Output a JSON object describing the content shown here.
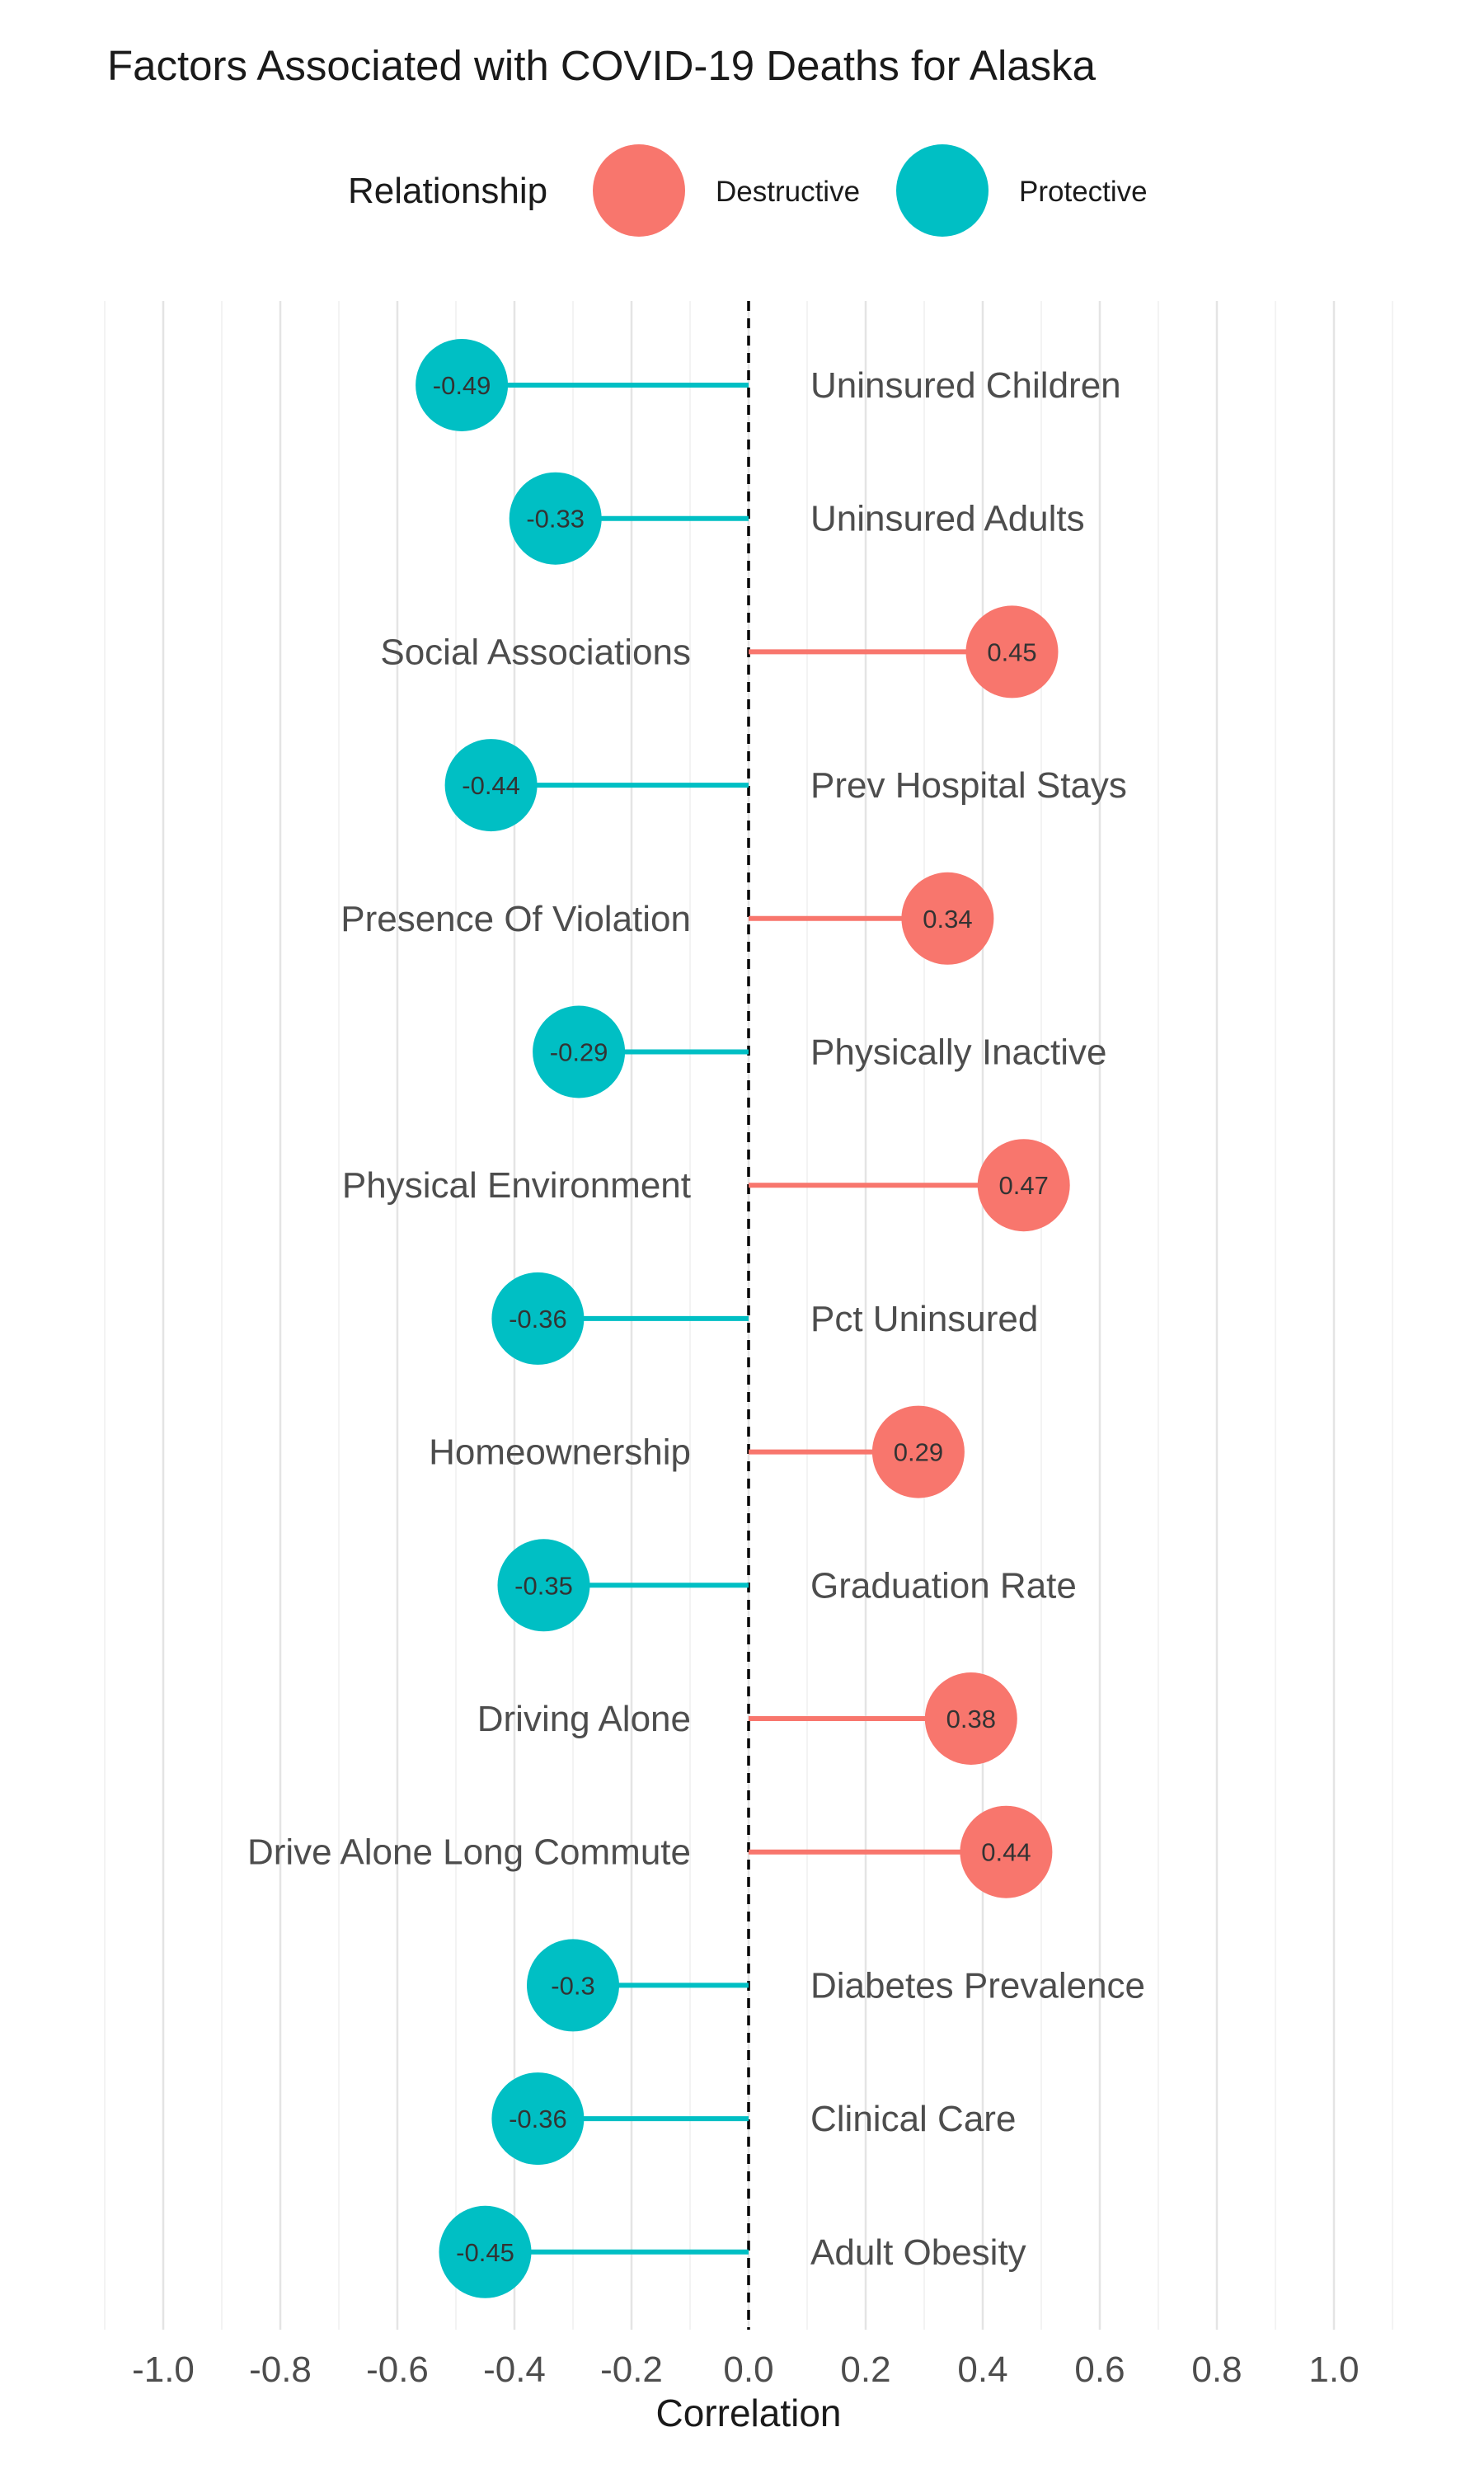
{
  "chart_data": {
    "type": "lollipop",
    "title": "Factors Associated with COVID-19 Deaths for Alaska",
    "xlabel": "Correlation",
    "ylabel": "",
    "xlim": [
      -1.1,
      1.1
    ],
    "x_ticks": [
      "-1.0",
      "-0.8",
      "-0.6",
      "-0.4",
      "-0.2",
      "0.0",
      "0.2",
      "0.4",
      "0.6",
      "0.8",
      "1.0"
    ],
    "x_tick_values": [
      -1.0,
      -0.8,
      -0.6,
      -0.4,
      -0.2,
      0.0,
      0.2,
      0.4,
      0.6,
      0.8,
      1.0
    ],
    "reference_line": 0,
    "grid": "vertical",
    "legend": {
      "title": "Relationship",
      "placement": "top",
      "entries": [
        {
          "label": "Destructive",
          "color": "#F8766D"
        },
        {
          "label": "Protective",
          "color": "#00BFC4"
        }
      ]
    },
    "points": [
      {
        "factor": "Uninsured Children",
        "value": -0.49,
        "label": "-0.49",
        "relationship": "Protective"
      },
      {
        "factor": "Uninsured Adults",
        "value": -0.33,
        "label": "-0.33",
        "relationship": "Protective"
      },
      {
        "factor": "Social Associations",
        "value": 0.45,
        "label": "0.45",
        "relationship": "Destructive"
      },
      {
        "factor": "Prev Hospital Stays",
        "value": -0.44,
        "label": "-0.44",
        "relationship": "Protective"
      },
      {
        "factor": "Presence Of Violation",
        "value": 0.34,
        "label": "0.34",
        "relationship": "Destructive"
      },
      {
        "factor": "Physically Inactive",
        "value": -0.29,
        "label": "-0.29",
        "relationship": "Protective"
      },
      {
        "factor": "Physical Environment",
        "value": 0.47,
        "label": "0.47",
        "relationship": "Destructive"
      },
      {
        "factor": "Pct Uninsured",
        "value": -0.36,
        "label": "-0.36",
        "relationship": "Protective"
      },
      {
        "factor": "Homeownership",
        "value": 0.29,
        "label": "0.29",
        "relationship": "Destructive"
      },
      {
        "factor": "Graduation Rate",
        "value": -0.35,
        "label": "-0.35",
        "relationship": "Protective"
      },
      {
        "factor": "Driving Alone",
        "value": 0.38,
        "label": "0.38",
        "relationship": "Destructive"
      },
      {
        "factor": "Drive Alone Long Commute",
        "value": 0.44,
        "label": "0.44",
        "relationship": "Destructive"
      },
      {
        "factor": "Diabetes Prevalence",
        "value": -0.3,
        "label": "-0.3",
        "relationship": "Protective"
      },
      {
        "factor": "Clinical Care",
        "value": -0.36,
        "label": "-0.36",
        "relationship": "Protective"
      },
      {
        "factor": "Adult Obesity",
        "value": -0.45,
        "label": "-0.45",
        "relationship": "Protective"
      }
    ]
  }
}
